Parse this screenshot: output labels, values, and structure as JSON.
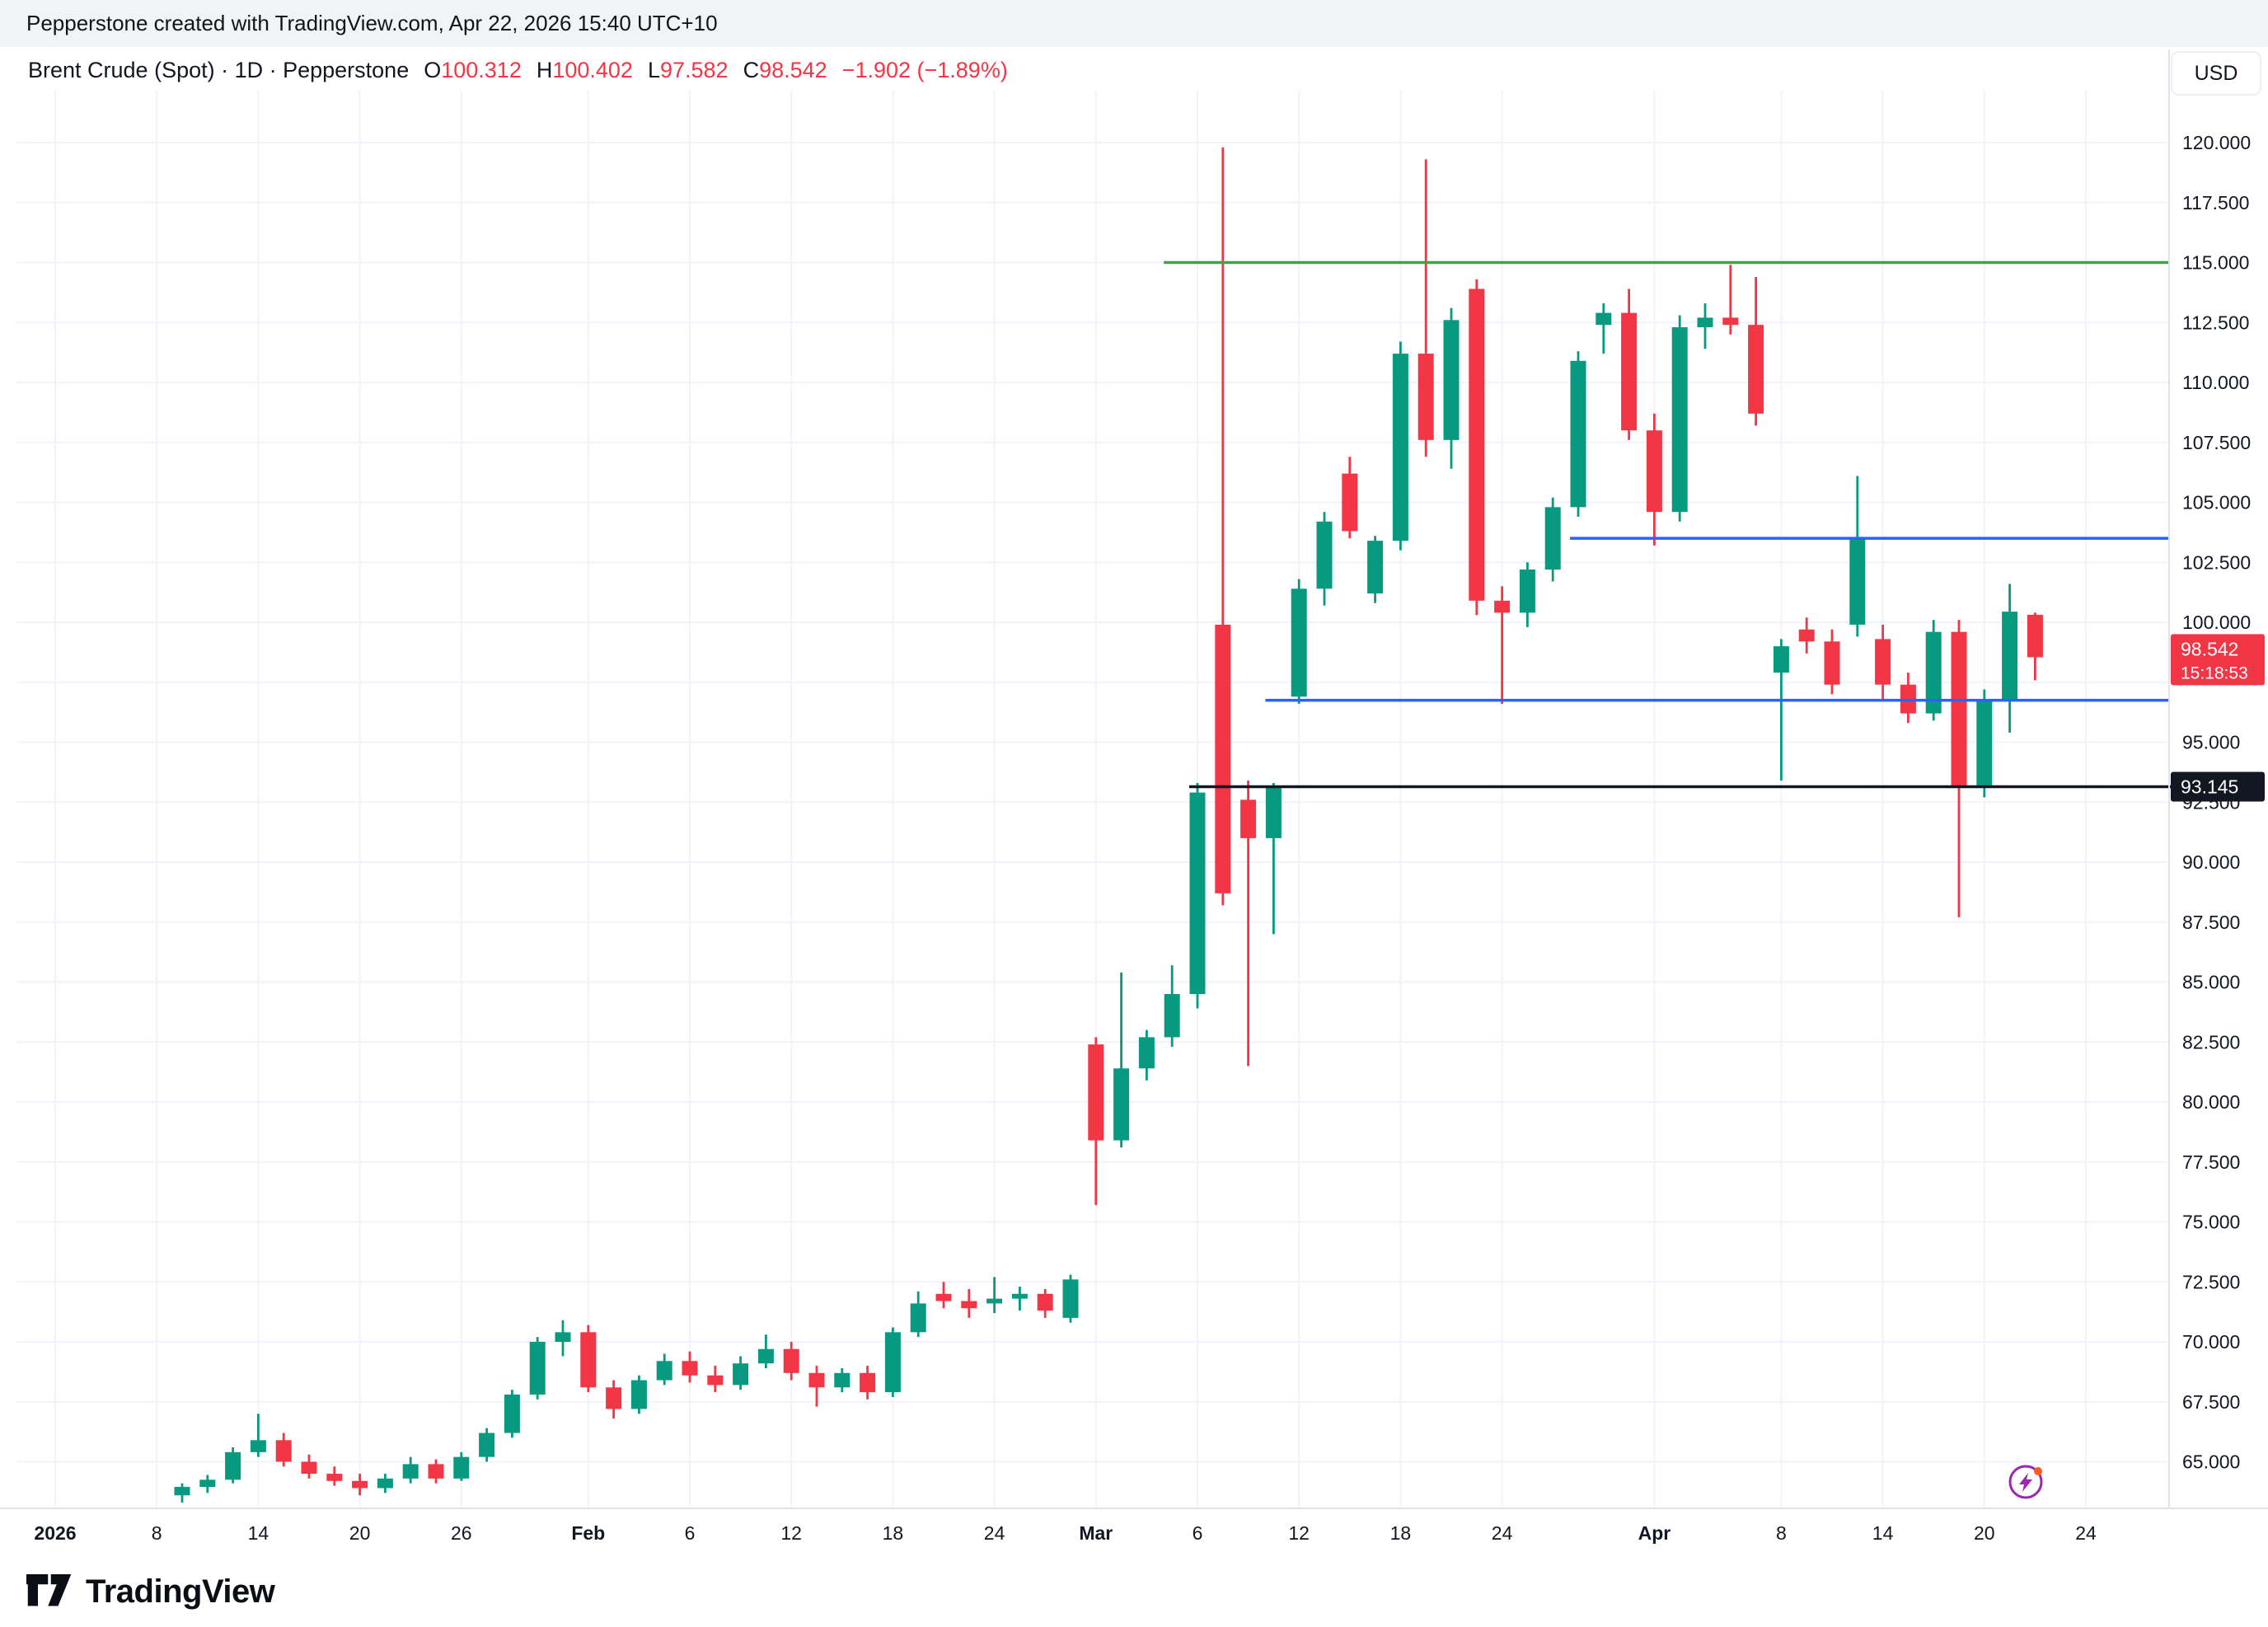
{
  "header": {
    "attribution": "Pepperstone created with TradingView.com, Apr 22, 2026 15:40 UTC+10",
    "currency": "USD"
  },
  "legend": {
    "symbol_title": "Brent Crude (Spot) · 1D · Pepperstone",
    "ohlc": [
      {
        "label": "O",
        "value": "100.312"
      },
      {
        "label": "H",
        "value": "100.402"
      },
      {
        "label": "L",
        "value": "97.582"
      },
      {
        "label": "C",
        "value": "98.542"
      }
    ],
    "change": "−1.902 (−1.89%)"
  },
  "footer": {
    "brand": "TradingView"
  },
  "chart_data": {
    "type": "candlestick",
    "title": "Brent Crude (Spot)",
    "interval": "1D",
    "provider": "Pepperstone",
    "currency": "USD",
    "last_price": "98.542",
    "countdown": "15:18:53",
    "ylim": [
      63,
      121.5
    ],
    "grid": true,
    "y_ticks": [
      "120.000",
      "117.500",
      "115.000",
      "112.500",
      "110.000",
      "107.500",
      "105.000",
      "102.500",
      "100.000",
      "95.000",
      "92.500",
      "90.000",
      "87.500",
      "85.000",
      "82.500",
      "80.000",
      "77.500",
      "75.000",
      "72.500",
      "70.000",
      "67.500",
      "65.000"
    ],
    "x_ticks": [
      {
        "label": "2026",
        "i": -5,
        "bold": true
      },
      {
        "label": "8",
        "i": -1
      },
      {
        "label": "14",
        "i": 3
      },
      {
        "label": "20",
        "i": 7
      },
      {
        "label": "26",
        "i": 11
      },
      {
        "label": "Feb",
        "i": 16,
        "bold": true
      },
      {
        "label": "6",
        "i": 20
      },
      {
        "label": "12",
        "i": 24
      },
      {
        "label": "18",
        "i": 28
      },
      {
        "label": "24",
        "i": 32
      },
      {
        "label": "Mar",
        "i": 36,
        "bold": true
      },
      {
        "label": "6",
        "i": 40
      },
      {
        "label": "12",
        "i": 44
      },
      {
        "label": "18",
        "i": 48
      },
      {
        "label": "24",
        "i": 52
      },
      {
        "label": "Apr",
        "i": 58,
        "bold": true
      },
      {
        "label": "8",
        "i": 63
      },
      {
        "label": "14",
        "i": 67
      },
      {
        "label": "20",
        "i": 71
      },
      {
        "label": "24",
        "i": 75
      }
    ],
    "candle_columns": [
      "date",
      "open",
      "high",
      "low",
      "close"
    ],
    "candles": [
      [
        "Jan 9",
        63.6,
        64.1,
        63.3,
        63.95
      ],
      [
        "Jan 12",
        63.95,
        64.45,
        63.7,
        64.25
      ],
      [
        "Jan 13",
        64.25,
        65.6,
        64.1,
        65.4
      ],
      [
        "Jan 14",
        65.4,
        67.0,
        65.2,
        65.9
      ],
      [
        "Jan 15",
        65.9,
        66.2,
        64.8,
        65.0
      ],
      [
        "Jan 16",
        65.0,
        65.3,
        64.3,
        64.5
      ],
      [
        "Jan 19",
        64.5,
        64.8,
        64.0,
        64.2
      ],
      [
        "Jan 20",
        64.2,
        64.5,
        63.6,
        63.9
      ],
      [
        "Jan 21",
        63.9,
        64.5,
        63.7,
        64.3
      ],
      [
        "Jan 22",
        64.3,
        65.2,
        64.1,
        64.9
      ],
      [
        "Jan 23",
        64.9,
        65.1,
        64.1,
        64.3
      ],
      [
        "Jan 26",
        64.3,
        65.4,
        64.2,
        65.2
      ],
      [
        "Jan 27",
        65.2,
        66.4,
        65.0,
        66.2
      ],
      [
        "Jan 28",
        66.2,
        68.0,
        66.0,
        67.8
      ],
      [
        "Jan 29",
        67.8,
        70.2,
        67.6,
        70.0
      ],
      [
        "Jan 30",
        70.0,
        70.9,
        69.4,
        70.4
      ],
      [
        "Feb 2",
        70.4,
        70.7,
        67.9,
        68.1
      ],
      [
        "Feb 3",
        68.1,
        68.4,
        66.8,
        67.2
      ],
      [
        "Feb 4",
        67.2,
        68.6,
        67.0,
        68.4
      ],
      [
        "Feb 5",
        68.4,
        69.5,
        68.2,
        69.2
      ],
      [
        "Feb 6",
        69.2,
        69.6,
        68.3,
        68.6
      ],
      [
        "Feb 9",
        68.6,
        69.0,
        67.9,
        68.2
      ],
      [
        "Feb 10",
        68.2,
        69.4,
        68.0,
        69.1
      ],
      [
        "Feb 11",
        69.1,
        70.3,
        68.9,
        69.7
      ],
      [
        "Feb 12",
        69.7,
        70.0,
        68.4,
        68.7
      ],
      [
        "Feb 13",
        68.7,
        69.0,
        67.3,
        68.1
      ],
      [
        "Feb 16",
        68.1,
        68.9,
        67.9,
        68.7
      ],
      [
        "Feb 17",
        68.7,
        69.0,
        67.6,
        67.9
      ],
      [
        "Feb 18",
        67.9,
        70.6,
        67.7,
        70.4
      ],
      [
        "Feb 19",
        70.4,
        72.1,
        70.2,
        71.6
      ],
      [
        "Feb 20",
        72.0,
        72.5,
        71.4,
        71.7
      ],
      [
        "Feb 23",
        71.7,
        72.2,
        71.0,
        71.4
      ],
      [
        "Feb 24",
        71.6,
        72.7,
        71.2,
        71.8
      ],
      [
        "Feb 25",
        71.8,
        72.3,
        71.3,
        72.0
      ],
      [
        "Feb 26",
        72.0,
        72.2,
        71.0,
        71.3
      ],
      [
        "Feb 27",
        71.0,
        72.8,
        70.8,
        72.6
      ],
      [
        "Mar 2",
        82.4,
        82.7,
        75.7,
        78.4
      ],
      [
        "Mar 3",
        78.4,
        85.4,
        78.1,
        81.4
      ],
      [
        "Mar 4",
        81.4,
        83.0,
        80.9,
        82.7
      ],
      [
        "Mar 5",
        82.7,
        85.7,
        82.3,
        84.5
      ],
      [
        "Mar 6",
        84.5,
        93.3,
        83.9,
        92.9
      ],
      [
        "Mar 9",
        99.9,
        119.8,
        88.2,
        88.7
      ],
      [
        "Mar 10",
        92.6,
        93.4,
        81.5,
        91.0
      ],
      [
        "Mar 11",
        91.0,
        93.3,
        87.0,
        93.1
      ],
      [
        "Mar 12",
        96.9,
        101.8,
        96.6,
        101.4
      ],
      [
        "Mar 13",
        101.4,
        104.6,
        100.7,
        104.2
      ],
      [
        "Mar 16",
        106.2,
        106.9,
        103.5,
        103.8
      ],
      [
        "Mar 17",
        101.2,
        103.6,
        100.8,
        103.4
      ],
      [
        "Mar 18",
        103.4,
        111.7,
        103.0,
        111.2
      ],
      [
        "Mar 19",
        111.2,
        119.3,
        106.9,
        107.6
      ],
      [
        "Mar 20",
        107.6,
        113.1,
        106.4,
        112.6
      ],
      [
        "Mar 23",
        113.9,
        114.3,
        100.3,
        100.9
      ],
      [
        "Mar 24",
        100.9,
        101.5,
        96.6,
        100.4
      ],
      [
        "Mar 25",
        100.4,
        102.5,
        99.8,
        102.2
      ],
      [
        "Mar 26",
        102.2,
        105.2,
        101.7,
        104.8
      ],
      [
        "Mar 27",
        104.8,
        111.3,
        104.4,
        110.9
      ],
      [
        "Mar 30",
        112.4,
        113.3,
        111.2,
        112.9
      ],
      [
        "Mar 31",
        112.9,
        113.9,
        107.6,
        108.0
      ],
      [
        "Apr 1",
        108.0,
        108.7,
        103.2,
        104.6
      ],
      [
        "Apr 2",
        104.6,
        112.8,
        104.2,
        112.3
      ],
      [
        "Apr 3",
        112.3,
        113.3,
        111.4,
        112.7
      ],
      [
        "Apr 6",
        112.7,
        114.9,
        112.0,
        112.4
      ],
      [
        "Apr 7",
        112.4,
        114.4,
        108.2,
        108.7
      ],
      [
        "Apr 8",
        97.9,
        99.3,
        93.4,
        99.0
      ],
      [
        "Apr 9",
        99.7,
        100.2,
        98.7,
        99.2
      ],
      [
        "Apr 10",
        99.2,
        99.7,
        97.0,
        97.4
      ],
      [
        "Apr 13",
        99.9,
        106.1,
        99.4,
        103.5
      ],
      [
        "Apr 14",
        99.3,
        99.9,
        96.8,
        97.4
      ],
      [
        "Apr 15",
        97.4,
        97.9,
        95.8,
        96.2
      ],
      [
        "Apr 16",
        96.2,
        100.1,
        95.9,
        99.6
      ],
      [
        "Apr 17",
        99.6,
        100.1,
        87.7,
        93.2
      ],
      [
        "Apr 20",
        93.2,
        97.2,
        92.7,
        96.8
      ],
      [
        "Apr 21",
        96.8,
        101.6,
        95.4,
        100.444
      ],
      [
        "Apr 22",
        100.312,
        100.402,
        97.582,
        98.542
      ]
    ],
    "levels": [
      {
        "name": "resistance-line-115",
        "price": 115.0,
        "color": "#43a047",
        "from": 39,
        "extend_to": "plot"
      },
      {
        "name": "resistance-line-103-5",
        "price": 103.5,
        "color": "#2962ff",
        "from": 55,
        "extend_to": "plot"
      },
      {
        "name": "support-line-96-75",
        "price": 96.75,
        "color": "#2962ff",
        "from": 43,
        "extend_to": "plot"
      },
      {
        "name": "support-line-93-145",
        "price": 93.145,
        "color": "#131722",
        "from": 40,
        "extend_to": "axis",
        "label": "93.145"
      }
    ],
    "price_badges": [
      {
        "text": "98.542",
        "sub": "15:18:53",
        "bg": "#f23645",
        "price": 98.542
      },
      {
        "text": "93.145",
        "bg": "#131722",
        "price": 93.145
      }
    ],
    "colors": {
      "up": "#089981",
      "down": "#f23645",
      "grid": "#f0f3fa",
      "axis_text": "#131722",
      "separator": "#e0e3eb",
      "bolt": "#9c27b0",
      "bolt_dot": "#ff5b22"
    }
  }
}
